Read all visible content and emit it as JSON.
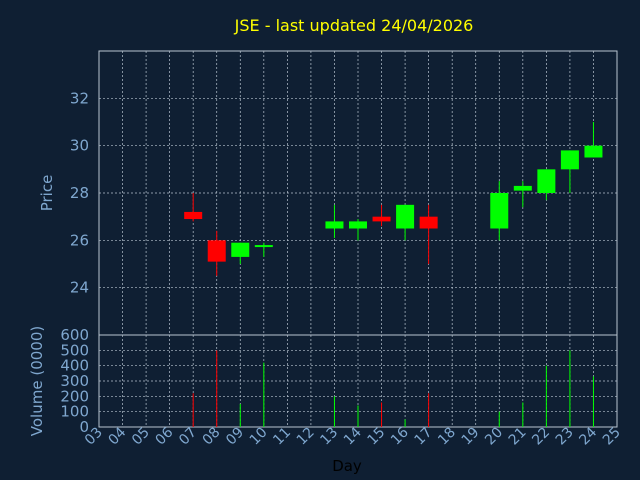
{
  "chart_data": [
    {
      "type": "candlestick",
      "title": "JSE - last updated 24/04/2026",
      "xlabel": "",
      "ylabel": "Price",
      "ylim": [
        22,
        34
      ],
      "yticks": [
        24,
        26,
        28,
        30,
        32
      ],
      "xlim": [
        3,
        25
      ],
      "grid": true,
      "candles": [
        {
          "day": 7,
          "open": 27.2,
          "high": 28.0,
          "low": 26.8,
          "close": 26.9
        },
        {
          "day": 8,
          "open": 26.0,
          "high": 26.4,
          "low": 24.5,
          "close": 25.1
        },
        {
          "day": 9,
          "open": 25.3,
          "high": 25.9,
          "low": 25.0,
          "close": 25.9
        },
        {
          "day": 10,
          "open": 25.8,
          "high": 25.9,
          "low": 25.3,
          "close": 25.8
        },
        {
          "day": 13,
          "open": 26.5,
          "high": 27.5,
          "low": 26.1,
          "close": 26.8
        },
        {
          "day": 14,
          "open": 26.5,
          "high": 26.9,
          "low": 26.0,
          "close": 26.8
        },
        {
          "day": 15,
          "open": 27.0,
          "high": 27.5,
          "low": 26.6,
          "close": 26.8
        },
        {
          "day": 16,
          "open": 26.5,
          "high": 27.5,
          "low": 26.0,
          "close": 27.5
        },
        {
          "day": 17,
          "open": 27.0,
          "high": 27.5,
          "low": 25.0,
          "close": 26.5
        },
        {
          "day": 20,
          "open": 26.5,
          "high": 28.5,
          "low": 26.0,
          "close": 28.0
        },
        {
          "day": 21,
          "open": 28.1,
          "high": 28.5,
          "low": 27.4,
          "close": 28.3
        },
        {
          "day": 22,
          "open": 28.0,
          "high": 29.0,
          "low": 27.7,
          "close": 29.0
        },
        {
          "day": 23,
          "open": 29.0,
          "high": 29.8,
          "low": 28.0,
          "close": 29.8
        },
        {
          "day": 24,
          "open": 29.5,
          "high": 31.0,
          "low": 29.5,
          "close": 30.0
        }
      ]
    },
    {
      "type": "bar",
      "title": "",
      "xlabel": "Day",
      "ylabel": "Volume (0000)",
      "ylim": [
        0,
        600
      ],
      "yticks": [
        0,
        100,
        200,
        300,
        400,
        500,
        600
      ],
      "xlim": [
        3,
        25
      ],
      "xticks": [
        "03",
        "04",
        "05",
        "06",
        "07",
        "08",
        "09",
        "10",
        "11",
        "12",
        "13",
        "14",
        "15",
        "16",
        "17",
        "18",
        "19",
        "20",
        "21",
        "22",
        "23",
        "24",
        "25"
      ],
      "grid": true,
      "bars": [
        {
          "day": 7,
          "value": 220,
          "direction": "down"
        },
        {
          "day": 8,
          "value": 500,
          "direction": "down"
        },
        {
          "day": 9,
          "value": 150,
          "direction": "up"
        },
        {
          "day": 10,
          "value": 420,
          "direction": "up"
        },
        {
          "day": 13,
          "value": 200,
          "direction": "up"
        },
        {
          "day": 14,
          "value": 140,
          "direction": "up"
        },
        {
          "day": 15,
          "value": 160,
          "direction": "down"
        },
        {
          "day": 16,
          "value": 50,
          "direction": "up"
        },
        {
          "day": 17,
          "value": 220,
          "direction": "down"
        },
        {
          "day": 20,
          "value": 100,
          "direction": "up"
        },
        {
          "day": 21,
          "value": 160,
          "direction": "up"
        },
        {
          "day": 22,
          "value": 400,
          "direction": "up"
        },
        {
          "day": 23,
          "value": 500,
          "direction": "up"
        },
        {
          "day": 24,
          "value": 330,
          "direction": "up"
        }
      ]
    }
  ],
  "colors": {
    "background": "#0f1f33",
    "title": "#ffff00",
    "axis_text": "#7fa7cf",
    "grid": "#b8c4d0",
    "up": "#00ff00",
    "down": "#ff0000"
  }
}
